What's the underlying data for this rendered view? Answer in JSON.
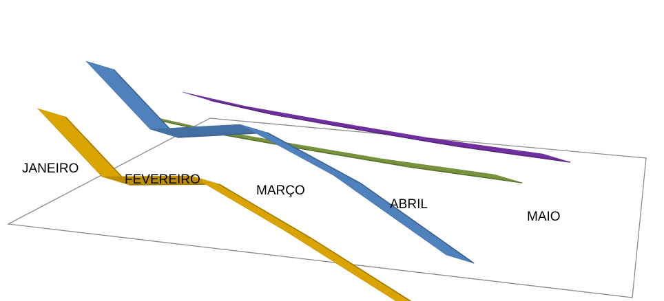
{
  "chart_data": {
    "type": "line",
    "style": "3d-ribbon",
    "title": "",
    "xlabel": "",
    "ylabel": "",
    "categories": [
      "JANEIRO",
      "FEVEREIRO",
      "MARÇO",
      "ABRIL",
      "MAIO"
    ],
    "grid": false,
    "legend": "none",
    "series": [
      {
        "color": "#7030a0",
        "values": [
          2.7,
          2.6,
          2.5,
          2.4,
          2.3
        ]
      },
      {
        "color": "#77933c",
        "values": [
          2.2,
          2.1,
          2.0,
          1.9,
          1.8
        ]
      },
      {
        "color": "#4f81bd",
        "values": [
          5.2,
          2.5,
          3.4,
          1.6,
          -1.6
        ]
      },
      {
        "color": "#d9a300",
        "values": [
          3.4,
          0.7,
          1.4,
          -0.6,
          -3.4
        ]
      }
    ]
  }
}
